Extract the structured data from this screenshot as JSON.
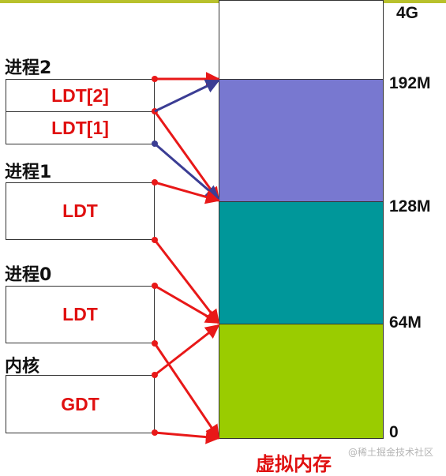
{
  "processes": {
    "p2": "进程2",
    "p1": "进程1",
    "p0": "进程0",
    "kernel": "内核"
  },
  "tables": {
    "ldt2": "LDT[2]",
    "ldt1": "LDT[1]",
    "ldt_p1": "LDT",
    "ldt_p0": "LDT",
    "gdt": "GDT"
  },
  "memory": {
    "addresses": [
      "4G",
      "192M",
      "128M",
      "64M",
      "0"
    ],
    "caption": "虚拟内存",
    "colors": {
      "top": "#ffffff",
      "range_128_192": "#7878d0",
      "range_64_128": "#00979a",
      "range_0_64": "#9acc00"
    }
  },
  "arrow_colors": {
    "red": "#e81818",
    "blue": "#3b3d94"
  },
  "watermark": "@稀土掘金技术社区"
}
